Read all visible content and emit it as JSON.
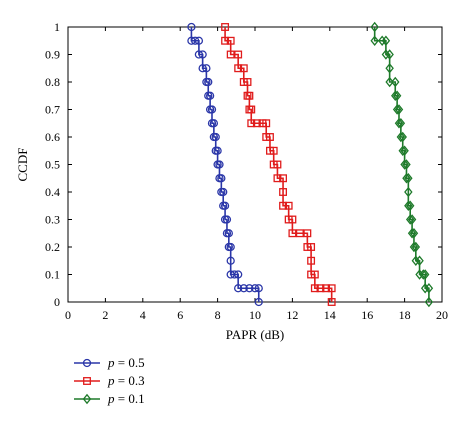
{
  "chart_data": {
    "type": "line",
    "xlabel": "PAPR (dB)",
    "ylabel": "CCDF",
    "xlim": [
      0,
      20
    ],
    "ylim": [
      0,
      1
    ],
    "x_ticks": [
      "0",
      "2",
      "4",
      "6",
      "8",
      "10",
      "12",
      "14",
      "16",
      "18",
      "20"
    ],
    "y_ticks": [
      "0",
      "0.1",
      "0.2",
      "0.3",
      "0.4",
      "0.5",
      "0.6",
      "0.7",
      "0.8",
      "0.9",
      "1"
    ],
    "grid": false,
    "legend_position": "below-left",
    "series": [
      {
        "name_var": "p",
        "name_rest": " = 0.5",
        "color": "#2a36a8",
        "marker": "circle",
        "points": [
          [
            6.6,
            1.0
          ],
          [
            6.6,
            0.95
          ],
          [
            6.8,
            0.95
          ],
          [
            7.0,
            0.95
          ],
          [
            7.0,
            0.9
          ],
          [
            7.2,
            0.9
          ],
          [
            7.2,
            0.85
          ],
          [
            7.4,
            0.85
          ],
          [
            7.4,
            0.8
          ],
          [
            7.5,
            0.8
          ],
          [
            7.5,
            0.75
          ],
          [
            7.6,
            0.75
          ],
          [
            7.6,
            0.7
          ],
          [
            7.7,
            0.7
          ],
          [
            7.7,
            0.65
          ],
          [
            7.8,
            0.65
          ],
          [
            7.8,
            0.6
          ],
          [
            7.9,
            0.6
          ],
          [
            7.9,
            0.55
          ],
          [
            8.0,
            0.55
          ],
          [
            8.0,
            0.5
          ],
          [
            8.1,
            0.5
          ],
          [
            8.1,
            0.45
          ],
          [
            8.2,
            0.45
          ],
          [
            8.2,
            0.4
          ],
          [
            8.3,
            0.4
          ],
          [
            8.3,
            0.35
          ],
          [
            8.4,
            0.35
          ],
          [
            8.4,
            0.3
          ],
          [
            8.5,
            0.3
          ],
          [
            8.5,
            0.25
          ],
          [
            8.6,
            0.25
          ],
          [
            8.6,
            0.2
          ],
          [
            8.7,
            0.2
          ],
          [
            8.7,
            0.15
          ],
          [
            8.7,
            0.1
          ],
          [
            8.9,
            0.1
          ],
          [
            9.1,
            0.1
          ],
          [
            9.1,
            0.05
          ],
          [
            9.4,
            0.05
          ],
          [
            9.7,
            0.05
          ],
          [
            10.0,
            0.05
          ],
          [
            10.2,
            0.05
          ],
          [
            10.2,
            0.0
          ]
        ]
      },
      {
        "name_var": "p",
        "name_rest": " = 0.3",
        "color": "#e01c1c",
        "marker": "square",
        "points": [
          [
            8.4,
            1.0
          ],
          [
            8.4,
            0.95
          ],
          [
            8.7,
            0.95
          ],
          [
            8.7,
            0.9
          ],
          [
            9.1,
            0.9
          ],
          [
            9.1,
            0.85
          ],
          [
            9.4,
            0.85
          ],
          [
            9.4,
            0.8
          ],
          [
            9.6,
            0.8
          ],
          [
            9.6,
            0.75
          ],
          [
            9.7,
            0.75
          ],
          [
            9.7,
            0.7
          ],
          [
            9.8,
            0.7
          ],
          [
            9.8,
            0.65
          ],
          [
            10.1,
            0.65
          ],
          [
            10.4,
            0.65
          ],
          [
            10.6,
            0.65
          ],
          [
            10.6,
            0.6
          ],
          [
            10.8,
            0.6
          ],
          [
            10.8,
            0.55
          ],
          [
            11.0,
            0.55
          ],
          [
            11.0,
            0.5
          ],
          [
            11.2,
            0.5
          ],
          [
            11.2,
            0.45
          ],
          [
            11.5,
            0.45
          ],
          [
            11.5,
            0.4
          ],
          [
            11.5,
            0.35
          ],
          [
            11.8,
            0.35
          ],
          [
            11.8,
            0.3
          ],
          [
            12.0,
            0.3
          ],
          [
            12.0,
            0.25
          ],
          [
            12.4,
            0.25
          ],
          [
            12.8,
            0.25
          ],
          [
            12.8,
            0.2
          ],
          [
            13.0,
            0.2
          ],
          [
            13.0,
            0.15
          ],
          [
            13.0,
            0.1
          ],
          [
            13.2,
            0.1
          ],
          [
            13.2,
            0.05
          ],
          [
            13.5,
            0.05
          ],
          [
            13.8,
            0.05
          ],
          [
            14.1,
            0.05
          ],
          [
            14.1,
            0.0
          ]
        ]
      },
      {
        "name_var": "p",
        "name_rest": " = 0.1",
        "color": "#1e7a2a",
        "marker": "diamond",
        "points": [
          [
            16.4,
            1.0
          ],
          [
            16.4,
            0.95
          ],
          [
            16.8,
            0.95
          ],
          [
            17.0,
            0.95
          ],
          [
            17.0,
            0.9
          ],
          [
            17.2,
            0.9
          ],
          [
            17.2,
            0.85
          ],
          [
            17.2,
            0.8
          ],
          [
            17.5,
            0.8
          ],
          [
            17.5,
            0.75
          ],
          [
            17.6,
            0.75
          ],
          [
            17.6,
            0.7
          ],
          [
            17.7,
            0.7
          ],
          [
            17.7,
            0.65
          ],
          [
            17.8,
            0.65
          ],
          [
            17.8,
            0.6
          ],
          [
            17.9,
            0.6
          ],
          [
            17.9,
            0.55
          ],
          [
            18.0,
            0.55
          ],
          [
            18.0,
            0.5
          ],
          [
            18.1,
            0.5
          ],
          [
            18.1,
            0.45
          ],
          [
            18.2,
            0.45
          ],
          [
            18.2,
            0.4
          ],
          [
            18.2,
            0.35
          ],
          [
            18.3,
            0.35
          ],
          [
            18.3,
            0.3
          ],
          [
            18.4,
            0.3
          ],
          [
            18.4,
            0.25
          ],
          [
            18.5,
            0.25
          ],
          [
            18.5,
            0.2
          ],
          [
            18.6,
            0.2
          ],
          [
            18.6,
            0.15
          ],
          [
            18.8,
            0.15
          ],
          [
            18.8,
            0.1
          ],
          [
            19.0,
            0.1
          ],
          [
            19.1,
            0.1
          ],
          [
            19.1,
            0.05
          ],
          [
            19.3,
            0.05
          ],
          [
            19.3,
            0.0
          ]
        ]
      }
    ]
  }
}
